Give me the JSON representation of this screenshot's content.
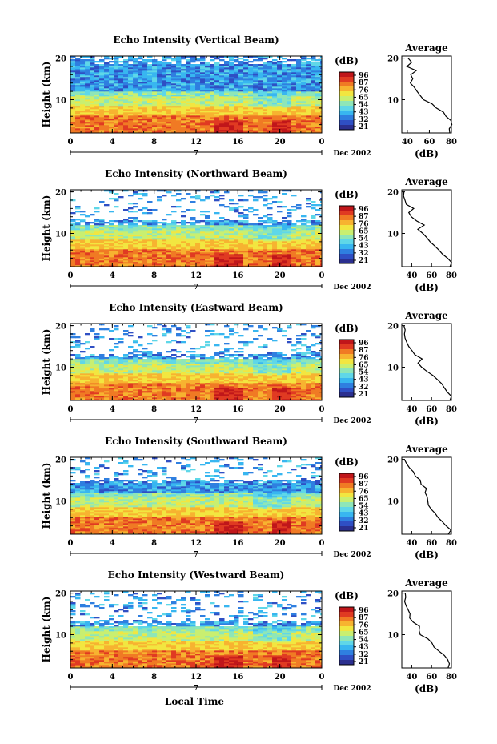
{
  "figure": {
    "ylabel": "Height (km)",
    "xlabel": "Local Time",
    "date_label": "Dec 2002",
    "day_label": "7",
    "avg_title": "Average",
    "avg_unit": "(dB)",
    "cb_unit": "(dB)"
  },
  "chart_data": [
    {
      "type": "heatmap",
      "title": "Echo Intensity (Vertical Beam)",
      "xlabel": "Local Time",
      "ylabel": "Height (km)",
      "x_ticks": [
        "0",
        "4",
        "8",
        "12",
        "16",
        "20",
        "0"
      ],
      "y_ticks": [
        "10",
        "20"
      ],
      "ylim": [
        2,
        20.5
      ],
      "xlim": [
        0,
        24
      ],
      "colorbar": {
        "label": "(dB)",
        "ticks": [
          "96",
          "87",
          "76",
          "65",
          "54",
          "43",
          "32",
          "21"
        ]
      },
      "noise_top_km": 19.5,
      "sparse_from_km": 19.5,
      "profile": {
        "title": "Average",
        "xlabel": "(dB)",
        "x_ticks": [
          "40",
          "60",
          "80"
        ],
        "y_ticks": [
          "10",
          "20"
        ],
        "xlim": [
          35,
          80
        ],
        "values": [
          [
            2,
            78
          ],
          [
            3,
            79
          ],
          [
            4,
            80
          ],
          [
            5,
            79
          ],
          [
            6,
            75
          ],
          [
            7,
            72
          ],
          [
            8,
            66
          ],
          [
            9,
            63
          ],
          [
            10,
            56
          ],
          [
            11,
            52
          ],
          [
            12,
            48
          ],
          [
            13,
            46
          ],
          [
            14,
            44
          ],
          [
            15,
            46
          ],
          [
            16,
            42
          ],
          [
            17,
            47
          ],
          [
            18,
            40
          ],
          [
            19,
            45
          ],
          [
            20,
            40
          ]
        ]
      }
    },
    {
      "type": "heatmap",
      "title": "Echo Intensity (Northward Beam)",
      "xlabel": "Local Time",
      "ylabel": "Height (km)",
      "x_ticks": [
        "0",
        "4",
        "8",
        "12",
        "16",
        "20",
        "0"
      ],
      "y_ticks": [
        "10",
        "20"
      ],
      "ylim": [
        2,
        20.5
      ],
      "xlim": [
        0,
        24
      ],
      "colorbar": {
        "label": "(dB)",
        "ticks": [
          "96",
          "87",
          "76",
          "65",
          "54",
          "43",
          "32",
          "21"
        ]
      },
      "noise_top_km": 13,
      "sparse_from_km": 13,
      "profile": {
        "title": "Average",
        "xlabel": "(dB)",
        "x_ticks": [
          "40",
          "60",
          "80"
        ],
        "y_ticks": [
          "10",
          "20"
        ],
        "xlim": [
          30,
          80
        ],
        "values": [
          [
            2,
            78
          ],
          [
            3,
            80
          ],
          [
            4,
            76
          ],
          [
            5,
            72
          ],
          [
            6,
            68
          ],
          [
            7,
            64
          ],
          [
            8,
            60
          ],
          [
            9,
            56
          ],
          [
            10,
            50
          ],
          [
            11,
            46
          ],
          [
            12,
            52
          ],
          [
            13,
            44
          ],
          [
            14,
            40
          ],
          [
            15,
            38
          ],
          [
            16,
            42
          ],
          [
            17,
            36
          ],
          [
            18,
            34
          ],
          [
            19,
            32
          ],
          [
            20,
            31
          ]
        ]
      }
    },
    {
      "type": "heatmap",
      "title": "Echo Intensity (Eastward Beam)",
      "xlabel": "Local Time",
      "ylabel": "Height (km)",
      "x_ticks": [
        "0",
        "4",
        "8",
        "12",
        "16",
        "20",
        "0"
      ],
      "y_ticks": [
        "10",
        "20"
      ],
      "ylim": [
        2,
        20.5
      ],
      "xlim": [
        0,
        24
      ],
      "colorbar": {
        "label": "(dB)",
        "ticks": [
          "96",
          "87",
          "76",
          "65",
          "54",
          "43",
          "32",
          "21"
        ]
      },
      "noise_top_km": 13,
      "sparse_from_km": 13,
      "profile": {
        "title": "Average",
        "xlabel": "(dB)",
        "x_ticks": [
          "40",
          "60",
          "80"
        ],
        "y_ticks": [
          "10",
          "20"
        ],
        "xlim": [
          30,
          80
        ],
        "values": [
          [
            2,
            78
          ],
          [
            3,
            80
          ],
          [
            4,
            77
          ],
          [
            5,
            73
          ],
          [
            6,
            69
          ],
          [
            7,
            65
          ],
          [
            8,
            60
          ],
          [
            9,
            55
          ],
          [
            10,
            50
          ],
          [
            11,
            46
          ],
          [
            12,
            50
          ],
          [
            13,
            43
          ],
          [
            14,
            40
          ],
          [
            15,
            37
          ],
          [
            16,
            36
          ],
          [
            17,
            34
          ],
          [
            18,
            33
          ],
          [
            19,
            32
          ],
          [
            20,
            31
          ]
        ]
      }
    },
    {
      "type": "heatmap",
      "title": "Echo Intensity (Southward Beam)",
      "xlabel": "Local Time",
      "ylabel": "Height (km)",
      "x_ticks": [
        "0",
        "4",
        "8",
        "12",
        "16",
        "20",
        "0"
      ],
      "y_ticks": [
        "10",
        "20"
      ],
      "ylim": [
        2,
        20.5
      ],
      "xlim": [
        0,
        24
      ],
      "colorbar": {
        "label": "(dB)",
        "ticks": [
          "96",
          "87",
          "76",
          "65",
          "54",
          "43",
          "32",
          "21"
        ]
      },
      "noise_top_km": 15,
      "sparse_from_km": 15,
      "profile": {
        "title": "Average",
        "xlabel": "(dB)",
        "x_ticks": [
          "40",
          "60",
          "80"
        ],
        "y_ticks": [
          "10",
          "20"
        ],
        "xlim": [
          30,
          80
        ],
        "values": [
          [
            2,
            78
          ],
          [
            3,
            79
          ],
          [
            4,
            76
          ],
          [
            5,
            72
          ],
          [
            6,
            68
          ],
          [
            7,
            64
          ],
          [
            8,
            60
          ],
          [
            9,
            58
          ],
          [
            10,
            55
          ],
          [
            11,
            57
          ],
          [
            12,
            52
          ],
          [
            13,
            56
          ],
          [
            14,
            50
          ],
          [
            15,
            48
          ],
          [
            16,
            44
          ],
          [
            17,
            42
          ],
          [
            18,
            38
          ],
          [
            19,
            36
          ],
          [
            20,
            33
          ]
        ]
      }
    },
    {
      "type": "heatmap",
      "title": "Echo Intensity (Westward Beam)",
      "xlabel": "Local Time",
      "ylabel": "Height (km)",
      "x_ticks": [
        "0",
        "4",
        "8",
        "12",
        "16",
        "20",
        "0"
      ],
      "y_ticks": [
        "10",
        "20"
      ],
      "ylim": [
        2,
        20.5
      ],
      "xlim": [
        0,
        24
      ],
      "colorbar": {
        "label": "(dB)",
        "ticks": [
          "96",
          "87",
          "76",
          "65",
          "54",
          "43",
          "32",
          "21"
        ]
      },
      "noise_top_km": 13,
      "sparse_from_km": 13,
      "profile": {
        "title": "Average",
        "xlabel": "(dB)",
        "x_ticks": [
          "40",
          "60",
          "80"
        ],
        "y_ticks": [
          "10",
          "20"
        ],
        "xlim": [
          30,
          80
        ],
        "values": [
          [
            2,
            78
          ],
          [
            3,
            79
          ],
          [
            4,
            76
          ],
          [
            5,
            72
          ],
          [
            6,
            68
          ],
          [
            7,
            63
          ],
          [
            8,
            59
          ],
          [
            9,
            55
          ],
          [
            10,
            50
          ],
          [
            11,
            46
          ],
          [
            12,
            48
          ],
          [
            13,
            42
          ],
          [
            14,
            39
          ],
          [
            15,
            37
          ],
          [
            16,
            36
          ],
          [
            17,
            35
          ],
          [
            18,
            34
          ],
          [
            19,
            33
          ],
          [
            20,
            32
          ]
        ]
      }
    }
  ],
  "colormap": [
    "#2b2f8f",
    "#2f4fc4",
    "#2f7fe0",
    "#38b6f0",
    "#5fd7e8",
    "#8ee6b8",
    "#c9ef70",
    "#f2e640",
    "#f7b330",
    "#f07a24",
    "#e03a22",
    "#c0161a"
  ]
}
